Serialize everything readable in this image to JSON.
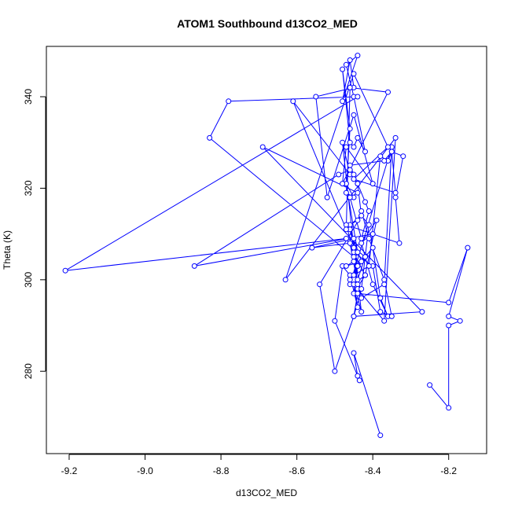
{
  "chart_data": {
    "type": "line",
    "title": "ATOM1 Southbound d13CO2_MED",
    "xlabel": "d13CO2_MED",
    "ylabel": "Theta (K)",
    "xlim": [
      -9.26,
      -8.1
    ],
    "ylim": [
      262,
      351
    ],
    "xticks": [
      -9.2,
      -9.0,
      -8.8,
      -8.6,
      -8.4,
      -8.2
    ],
    "xtick_labels": [
      "-9.2",
      "-9.0",
      "-8.8",
      "-8.6",
      "-8.4",
      "-8.2"
    ],
    "yticks": [
      280,
      300,
      320,
      340
    ],
    "ytick_labels": [
      "280",
      "300",
      "320",
      "340"
    ],
    "grid": false,
    "marker": "open-circle",
    "line_color": "#0000ff",
    "series": [
      {
        "x": [
          -8.38,
          -8.45,
          -8.44,
          -8.435,
          -8.5,
          -8.48,
          -8.46,
          -8.44,
          -8.45,
          -8.43,
          -8.44,
          -8.42,
          -8.4,
          -8.38,
          -8.36,
          -8.4,
          -8.43,
          -8.39,
          -8.42,
          -8.45,
          -8.44,
          -8.46,
          -8.42,
          -8.41,
          -8.43,
          -8.46,
          -8.44,
          -8.43,
          -8.41,
          -8.37,
          -8.35,
          -8.38,
          -8.4,
          -8.45,
          -8.47,
          -8.33,
          -8.34,
          -8.32,
          -8.35,
          -8.36,
          -8.38,
          -8.41,
          -8.45,
          -8.44,
          -8.46,
          -8.43,
          -8.47,
          -8.45,
          -8.44,
          -8.47,
          -8.45,
          -8.47,
          -8.46,
          -8.48,
          -8.46,
          -8.45,
          -8.44,
          -8.42,
          -8.45,
          -8.47,
          -8.44,
          -8.48,
          -8.46,
          -8.45,
          -8.55,
          -8.52,
          -8.45,
          -8.4,
          -8.47,
          -8.48,
          -8.36,
          -8.46,
          -8.47,
          -8.61,
          -8.46,
          -8.48,
          -8.45,
          -8.43,
          -8.37,
          -8.35,
          -8.46,
          -8.45,
          -8.42,
          -8.47,
          -9.21,
          -8.44,
          -8.78,
          -8.83,
          -8.45,
          -8.44,
          -8.46,
          -8.56,
          -8.45,
          -8.44,
          -8.37,
          -8.34,
          -8.63,
          -8.45,
          -8.36,
          -8.45,
          -8.34,
          -8.35,
          -8.37,
          -8.46,
          -8.45,
          -8.45,
          -8.44,
          -8.42,
          -8.41,
          -8.43,
          -8.46,
          -8.44,
          -8.69,
          -8.27,
          -8.45,
          -8.43,
          -8.42,
          -8.45,
          -8.4,
          -8.87,
          -8.49,
          -8.46,
          -8.44,
          -8.43,
          -8.54,
          -8.5,
          -8.45,
          -8.44,
          -8.2,
          -8.15,
          -8.2,
          -8.17,
          -8.2,
          -8.2,
          -8.25
        ],
        "y": [
          266,
          284,
          279,
          278,
          291,
          303,
          301,
          294,
          299,
          293,
          300,
          305,
          307,
          296,
          292,
          299,
          308,
          313,
          301,
          297,
          303,
          300,
          305,
          312,
          314,
          312,
          313,
          315,
          309,
          300,
          292,
          293,
          303,
          306,
          312,
          308,
          318,
          327,
          328,
          326,
          327,
          303,
          301,
          303,
          311,
          304,
          303,
          304,
          306,
          321,
          318,
          319,
          333,
          346,
          330,
          329,
          331,
          328,
          340,
          347,
          349,
          339,
          348,
          342,
          340,
          318,
          336,
          321,
          329,
          321,
          341,
          342,
          311,
          339,
          323,
          330,
          307,
          296,
          299,
          329,
          299,
          299,
          301,
          309,
          302,
          340,
          339,
          331,
          305,
          299,
          308,
          307,
          309,
          298,
          291,
          331,
          300,
          345,
          329,
          322,
          319,
          328,
          326,
          325,
          323,
          322,
          321,
          317,
          315,
          309,
          318,
          319,
          329,
          293,
          292,
          298,
          305,
          307,
          310,
          303,
          323,
          324,
          321,
          314,
          299,
          280,
          292,
          297,
          295,
          307,
          292,
          291,
          290,
          272,
          277
        ]
      }
    ]
  }
}
